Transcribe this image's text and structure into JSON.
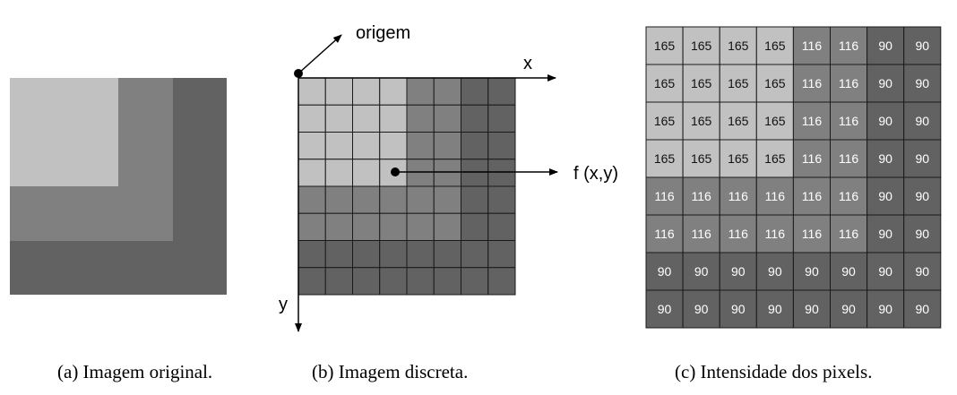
{
  "captions": {
    "a": "(a) Imagem original.",
    "b": "(b) Imagem discreta.",
    "c": "(c) Intensidade dos pixels."
  },
  "labels": {
    "origin": "origem",
    "x_axis": "x",
    "y_axis": "y",
    "function": "f (x,y)"
  },
  "intensity_colors": {
    "165": "#c1c1c1",
    "116": "#808080",
    "90": "#626262"
  },
  "pixel_matrix": [
    [
      165,
      165,
      165,
      165,
      116,
      116,
      90,
      90
    ],
    [
      165,
      165,
      165,
      165,
      116,
      116,
      90,
      90
    ],
    [
      165,
      165,
      165,
      165,
      116,
      116,
      90,
      90
    ],
    [
      165,
      165,
      165,
      165,
      116,
      116,
      90,
      90
    ],
    [
      116,
      116,
      116,
      116,
      116,
      116,
      90,
      90
    ],
    [
      116,
      116,
      116,
      116,
      116,
      116,
      90,
      90
    ],
    [
      90,
      90,
      90,
      90,
      90,
      90,
      90,
      90
    ],
    [
      90,
      90,
      90,
      90,
      90,
      90,
      90,
      90
    ]
  ]
}
